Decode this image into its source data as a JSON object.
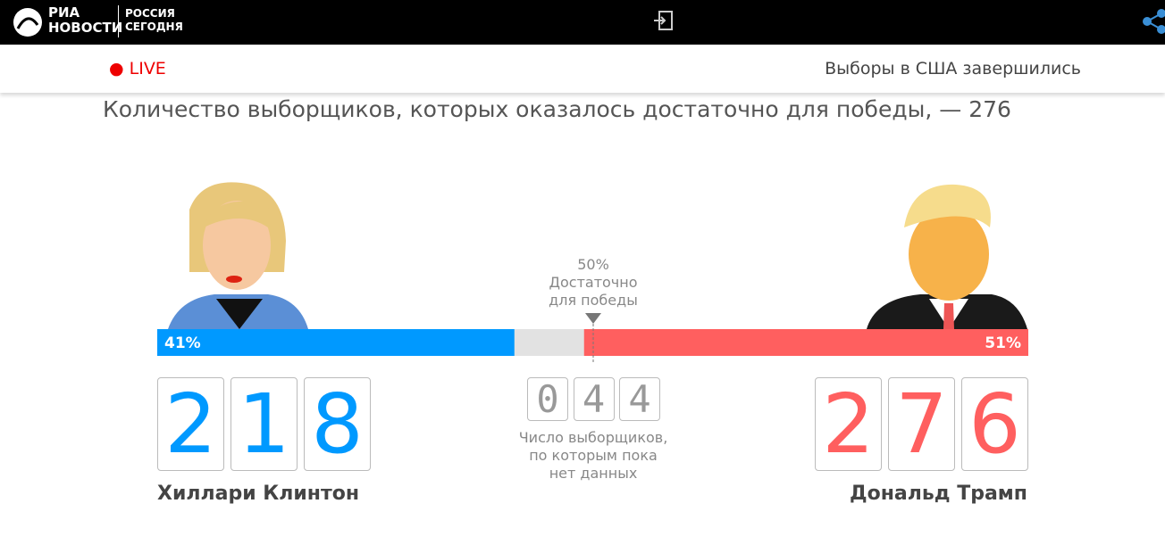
{
  "header": {
    "logo": [
      "РИА",
      "НОВОСТИ"
    ],
    "partner": [
      "РОССИЯ",
      "СЕГОДНЯ"
    ]
  },
  "live": "LIVE",
  "status": "Выборы в США завершились",
  "title": "Количество выборщиков, которых оказалось достаточно для победы, — 276",
  "threshold": [
    "50%",
    "Достаточно",
    "для победы"
  ],
  "candidates": [
    {
      "name": "Хиллари Клинтон",
      "value": 41,
      "value_label": "41%",
      "color": "#0099ff",
      "electors": [
        "2",
        "1",
        "8"
      ]
    },
    {
      "name": "Дональд Трамп",
      "value": 51,
      "value_label": "51%",
      "color": "#ff5f5f",
      "electors": [
        "2",
        "7",
        "6"
      ]
    }
  ],
  "undecided": {
    "electors": [
      "0",
      "4",
      "4"
    ],
    "note": [
      "Число выборщиков,",
      "по которым пока",
      "нет данных"
    ]
  }
}
